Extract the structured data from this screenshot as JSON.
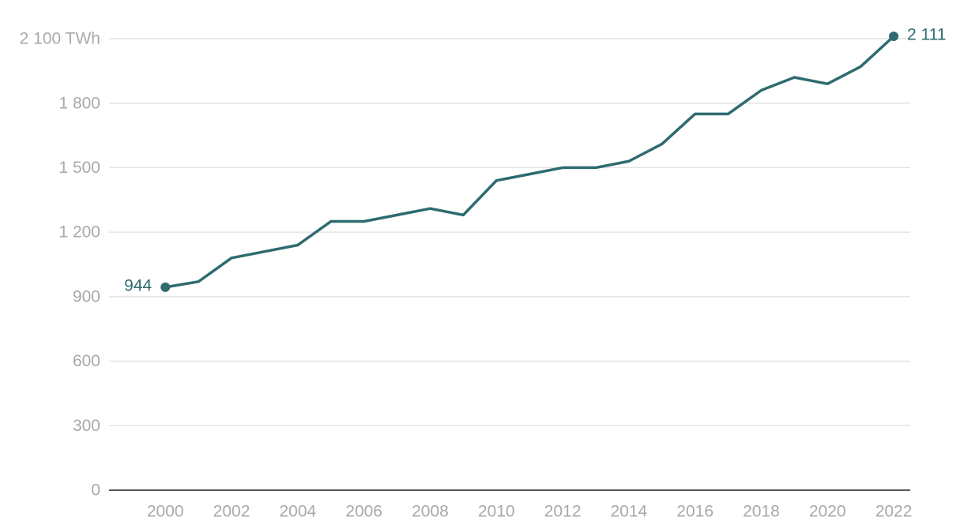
{
  "chart_data": {
    "type": "line",
    "x": [
      2000,
      2001,
      2002,
      2003,
      2004,
      2005,
      2006,
      2007,
      2008,
      2009,
      2010,
      2011,
      2012,
      2013,
      2014,
      2015,
      2016,
      2017,
      2018,
      2019,
      2020,
      2021,
      2022
    ],
    "series": [
      {
        "color": "#2e6b70",
        "values": [
          944,
          970,
          1080,
          1110,
          1140,
          1250,
          1250,
          1280,
          1310,
          1280,
          1440,
          1470,
          1500,
          1500,
          1530,
          1610,
          1750,
          1750,
          1860,
          1920,
          1890,
          1970,
          2111
        ],
        "value_labels": [
          "944",
          null,
          null,
          null,
          null,
          null,
          null,
          null,
          null,
          null,
          null,
          null,
          null,
          null,
          null,
          null,
          null,
          null,
          null,
          null,
          null,
          null,
          "2 111"
        ]
      }
    ],
    "xlim": [
      1998.3,
      2022.5
    ],
    "xticks": [
      2000,
      2002,
      2004,
      2006,
      2008,
      2010,
      2012,
      2014,
      2016,
      2018,
      2020,
      2022
    ],
    "ylim": [
      0,
      2100
    ],
    "yticks": [
      0,
      300,
      600,
      900,
      {
        "value": 1200,
        "label": "1 200"
      },
      {
        "value": 1500,
        "label": "1 500"
      },
      {
        "value": 1800,
        "label": "1 800"
      },
      {
        "value": 2100,
        "label": "2 100 TWh"
      }
    ],
    "grid": true
  }
}
